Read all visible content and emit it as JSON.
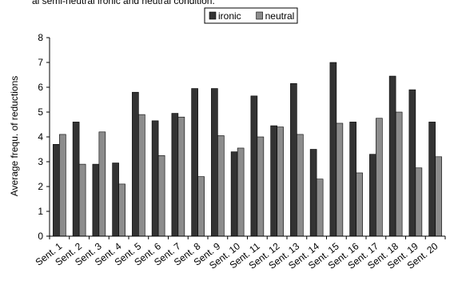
{
  "caption_fragment": "al semi-neutral ironic and neutral condition.",
  "chart_data": {
    "type": "bar",
    "categories": [
      "Sent. 1",
      "Sent. 2",
      "Sent. 3",
      "Sent. 4",
      "Sent. 5",
      "Sent. 6",
      "Sent. 7",
      "Sent. 8",
      "Sent. 9",
      "Sent. 10",
      "Sent. 11",
      "Sent. 12",
      "Sent. 13",
      "Sent. 14",
      "Sent. 15",
      "Sent. 16",
      "Sent. 17",
      "Sent. 18",
      "Sent. 19",
      "Sent. 20"
    ],
    "series": [
      {
        "name": "ironic",
        "color": "#333333",
        "values": [
          3.7,
          4.6,
          2.9,
          2.95,
          5.8,
          4.65,
          4.95,
          5.95,
          5.95,
          3.4,
          5.65,
          4.45,
          6.15,
          3.5,
          7.0,
          4.6,
          3.3,
          6.45,
          5.9,
          4.6
        ]
      },
      {
        "name": "neutral",
        "color": "#8c8c8c",
        "values": [
          4.1,
          2.9,
          4.2,
          2.1,
          4.9,
          3.25,
          4.8,
          2.4,
          4.05,
          3.55,
          4.0,
          4.4,
          4.1,
          2.3,
          4.55,
          2.55,
          4.75,
          5.0,
          2.75,
          3.2
        ]
      }
    ],
    "ylabel": "Average frequ. of reductions",
    "xlabel": "",
    "ylim": [
      0,
      8
    ],
    "yticks": [
      0,
      1,
      2,
      3,
      4,
      5,
      6,
      7,
      8
    ],
    "legend_position": "top-center",
    "grid": false
  }
}
